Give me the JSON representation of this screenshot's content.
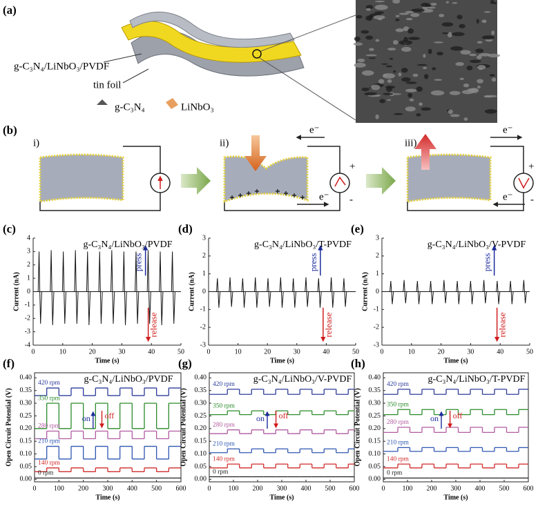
{
  "figure": {
    "panel_labels": [
      "(a)",
      "(b)",
      "(c)",
      "(d)",
      "(e)",
      "(f)",
      "(g)",
      "(h)"
    ],
    "a": {
      "film_label": "g-C₃N₄/LiNbO₃/PVDF",
      "foil_label": "tin foil",
      "legend": [
        "g-C₃N₄",
        "LiNbO₃"
      ]
    },
    "b": {
      "steps": [
        "i)",
        "ii)",
        "iii)"
      ],
      "electron": "e⁻",
      "plus": "+",
      "minus": "-"
    }
  },
  "chart_data": [
    {
      "type": "pulse",
      "title": "g-C₃N₄/LiNbO₃/PVDF",
      "xlabel": "Time (s)",
      "ylabel": "Current (nA)",
      "frame": false,
      "xlim": [
        0,
        50
      ],
      "xticks": [
        0,
        10,
        20,
        30,
        40,
        50
      ],
      "ylim": [
        -4,
        4
      ],
      "yticks": [
        -4,
        -3,
        -2,
        -1,
        0,
        1,
        2,
        3,
        4
      ],
      "color": "#111111",
      "annotations": {
        "press": "press",
        "release": "release"
      },
      "press_color": "#1a2a9a",
      "release_color": "#d01c1c",
      "x": [
        2,
        6.1,
        10.2,
        14.3,
        18.4,
        22.5,
        26.6,
        30.7,
        34.8,
        38.9,
        43,
        47.1
      ],
      "press": [
        3.0,
        3.1,
        3.0,
        3.1,
        3.0,
        3.0,
        3.1,
        3.0,
        3.0,
        3.1,
        3.0,
        3.0
      ],
      "release": [
        -2.4,
        -2.5,
        -2.4,
        -2.4,
        -2.5,
        -2.4,
        -2.4,
        -2.5,
        -2.4,
        -2.4,
        -2.5,
        -2.4
      ]
    },
    {
      "type": "pulse",
      "title": "g-C₃N₄/LiNbO₃/T-PVDF",
      "xlabel": "Time (s)",
      "ylabel": "Current (nA)",
      "frame": false,
      "xlim": [
        0,
        50
      ],
      "xticks": [
        0,
        10,
        20,
        30,
        40,
        50
      ],
      "ylim": [
        -3,
        3
      ],
      "yticks": [
        -3,
        -2,
        -1,
        0,
        1,
        2,
        3
      ],
      "color": "#111111",
      "annotations": {
        "press": "press",
        "release": "release"
      },
      "press_color": "#1a2a9a",
      "release_color": "#d01c1c",
      "x": [
        3,
        7.3,
        11.6,
        15.9,
        20.2,
        24.5,
        28.8,
        33.1,
        37.4,
        41.7,
        46
      ],
      "press": [
        0.75,
        0.8,
        0.75,
        0.8,
        0.75,
        0.8,
        0.75,
        0.8,
        0.75,
        0.8,
        0.75
      ],
      "release": [
        -0.9,
        -0.85,
        -0.9,
        -0.9,
        -0.85,
        -0.9,
        -0.9,
        -0.85,
        -0.9,
        -0.9,
        -0.85
      ]
    },
    {
      "type": "pulse",
      "title": "g-C₃N₄/LiNbO₃/V-PVDF",
      "xlabel": "Time (s)",
      "ylabel": "Current (nA)",
      "frame": false,
      "xlim": [
        0,
        50
      ],
      "xticks": [
        0,
        10,
        20,
        30,
        40,
        50
      ],
      "ylim": [
        -3,
        3
      ],
      "yticks": [
        -3,
        -2,
        -1,
        0,
        1,
        2,
        3
      ],
      "color": "#111111",
      "annotations": {
        "press": "press",
        "release": "release"
      },
      "press_color": "#1a2a9a",
      "release_color": "#d01c1c",
      "x": [
        3,
        7.5,
        12,
        16.5,
        21,
        25.5,
        30,
        34.5,
        39,
        43.5,
        48
      ],
      "press": [
        0.6,
        0.65,
        0.6,
        0.6,
        0.65,
        0.6,
        0.6,
        0.65,
        0.6,
        0.6,
        0.65
      ],
      "release": [
        -0.7,
        -0.65,
        -0.7,
        -0.7,
        -0.65,
        -0.7,
        -0.7,
        -0.65,
        -0.7,
        -0.7,
        -0.65
      ]
    },
    {
      "type": "step",
      "title": "g-C₃N₄/LiNbO₃/PVDF",
      "xlabel": "Time (s)",
      "ylabel": "Open Circuit Potential (V)",
      "frame": true,
      "xlim": [
        0,
        600
      ],
      "xticks": [
        0,
        100,
        200,
        300,
        400,
        500,
        600
      ],
      "ylim": [
        -0.01,
        0.42
      ],
      "yticks": [
        {
          "value": 0,
          "label": "0.00"
        },
        {
          "value": 0.05,
          "label": "0.05"
        },
        {
          "value": 0.1,
          "label": "0.10"
        },
        {
          "value": 0.15,
          "label": "0.15"
        },
        {
          "value": 0.2,
          "label": "0.20"
        },
        {
          "value": 0.25,
          "label": "0.25"
        },
        {
          "value": 0.3,
          "label": "0.30"
        },
        {
          "value": 0.35,
          "label": "0.35"
        },
        {
          "value": 0.4,
          "label": "0.40"
        }
      ],
      "annotations": {
        "on": "on",
        "off": "off"
      },
      "on_color": "#1a2a9a",
      "off_color": "#d01c1c",
      "on_times": [
        50,
        150,
        250,
        350,
        450,
        550
      ],
      "off_times": [
        100,
        200,
        300,
        400,
        500
      ],
      "series": [
        {
          "name": "420 rpm",
          "color": "#2b3a9a",
          "values": [
            0.33,
            0.36
          ]
        },
        {
          "name": "350 rpm",
          "color": "#2a8a2a",
          "values": [
            0.2,
            0.3
          ]
        },
        {
          "name": "280 rpm",
          "color": "#b05aa0",
          "values": [
            0.16,
            0.19
          ]
        },
        {
          "name": "210 rpm",
          "color": "#2c55b0",
          "values": [
            0.08,
            0.13
          ]
        },
        {
          "name": "140 rpm",
          "color": "#d02a2a",
          "values": [
            0.03,
            0.045
          ]
        },
        {
          "name": "0 rpm",
          "color": "#222222",
          "values": [
            0.005,
            0.005
          ]
        }
      ]
    },
    {
      "type": "step",
      "title": "g-C₃N₄/LiNbO₃/V-PVDF",
      "xlabel": "Time (s)",
      "ylabel": "Open Circuit Potential (V)",
      "frame": true,
      "xlim": [
        0,
        600
      ],
      "xticks": [
        0,
        100,
        200,
        300,
        400,
        500,
        600
      ],
      "ylim": [
        -0.01,
        0.42
      ],
      "yticks": [
        {
          "value": 0,
          "label": "0.00"
        },
        {
          "value": 0.05,
          "label": "0.05"
        },
        {
          "value": 0.1,
          "label": "0.10"
        },
        {
          "value": 0.15,
          "label": "0.15"
        },
        {
          "value": 0.2,
          "label": "0.20"
        },
        {
          "value": 0.25,
          "label": "0.25"
        },
        {
          "value": 0.3,
          "label": "0.30"
        },
        {
          "value": 0.35,
          "label": "0.35"
        },
        {
          "value": 0.4,
          "label": "0.40"
        }
      ],
      "annotations": {
        "on": "on",
        "off": "off"
      },
      "on_color": "#1a2a9a",
      "off_color": "#d01c1c",
      "on_times": [
        75,
        175,
        275,
        375,
        475,
        575
      ],
      "off_times": [
        125,
        225,
        325,
        425,
        525
      ],
      "series": [
        {
          "name": "420 rpm",
          "color": "#2b3a9a",
          "values": [
            0.335,
            0.355
          ]
        },
        {
          "name": "350 rpm",
          "color": "#2a8a2a",
          "values": [
            0.255,
            0.27
          ]
        },
        {
          "name": "280 rpm",
          "color": "#b05aa0",
          "values": [
            0.18,
            0.195
          ]
        },
        {
          "name": "210 rpm",
          "color": "#2c55b0",
          "values": [
            0.105,
            0.12
          ]
        },
        {
          "name": "140 rpm",
          "color": "#d02a2a",
          "values": [
            0.045,
            0.06
          ]
        },
        {
          "name": "0 rpm",
          "color": "#222222",
          "values": [
            0.01,
            0.01
          ]
        }
      ]
    },
    {
      "type": "step",
      "title": "g-C₃N₄/LiNbO₃/T-PVDF",
      "xlabel": "Time (s)",
      "ylabel": "Open Circuit Potential (V)",
      "frame": true,
      "xlim": [
        0,
        600
      ],
      "xticks": [
        0,
        100,
        200,
        300,
        400,
        500,
        600
      ],
      "ylim": [
        -0.01,
        0.42
      ],
      "yticks": [
        {
          "value": 0,
          "label": "0.00"
        },
        {
          "value": 0.05,
          "label": "0.05"
        },
        {
          "value": 0.1,
          "label": "0.10"
        },
        {
          "value": 0.15,
          "label": "0.15"
        },
        {
          "value": 0.2,
          "label": "0.20"
        },
        {
          "value": 0.25,
          "label": "0.25"
        },
        {
          "value": 0.3,
          "label": "0.30"
        },
        {
          "value": 0.35,
          "label": "0.35"
        },
        {
          "value": 0.4,
          "label": "0.40"
        }
      ],
      "annotations": {
        "on": "on",
        "off": "off"
      },
      "on_color": "#1a2a9a",
      "off_color": "#d01c1c",
      "on_times": [
        60,
        160,
        260,
        360,
        460,
        560
      ],
      "off_times": [
        110,
        210,
        310,
        410,
        510
      ],
      "series": [
        {
          "name": "420 rpm",
          "color": "#2b3a9a",
          "values": [
            0.335,
            0.355
          ]
        },
        {
          "name": "350 rpm",
          "color": "#2a8a2a",
          "values": [
            0.255,
            0.275
          ]
        },
        {
          "name": "280 rpm",
          "color": "#b05aa0",
          "values": [
            0.185,
            0.205
          ]
        },
        {
          "name": "210 rpm",
          "color": "#2c55b0",
          "values": [
            0.11,
            0.125
          ]
        },
        {
          "name": "140 rpm",
          "color": "#d02a2a",
          "values": [
            0.045,
            0.06
          ]
        },
        {
          "name": "0 rpm",
          "color": "#222222",
          "values": [
            0.005,
            0.005
          ]
        }
      ]
    }
  ]
}
